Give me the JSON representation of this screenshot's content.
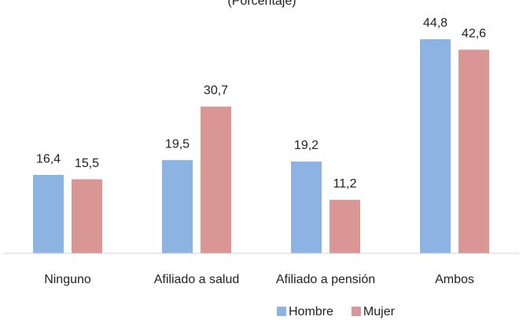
{
  "chart_data": {
    "type": "bar",
    "subtitle": "(Porcentaje)",
    "categories": [
      "Ninguno",
      "Afiliado a salud",
      "Afiliado a pensión",
      "Ambos"
    ],
    "series": [
      {
        "name": "Hombre",
        "color": "#8db3e2",
        "values": [
          16.4,
          19.5,
          19.2,
          44.8
        ],
        "value_labels": [
          "16,4",
          "19,5",
          "19,2",
          "44,8"
        ]
      },
      {
        "name": "Mujer",
        "color": "#da9694",
        "values": [
          15.5,
          30.7,
          11.2,
          42.6
        ],
        "value_labels": [
          "15,5",
          "30,7",
          "11,2",
          "42,6"
        ]
      }
    ],
    "ylim": [
      0,
      53
    ],
    "legend": "bottom"
  }
}
